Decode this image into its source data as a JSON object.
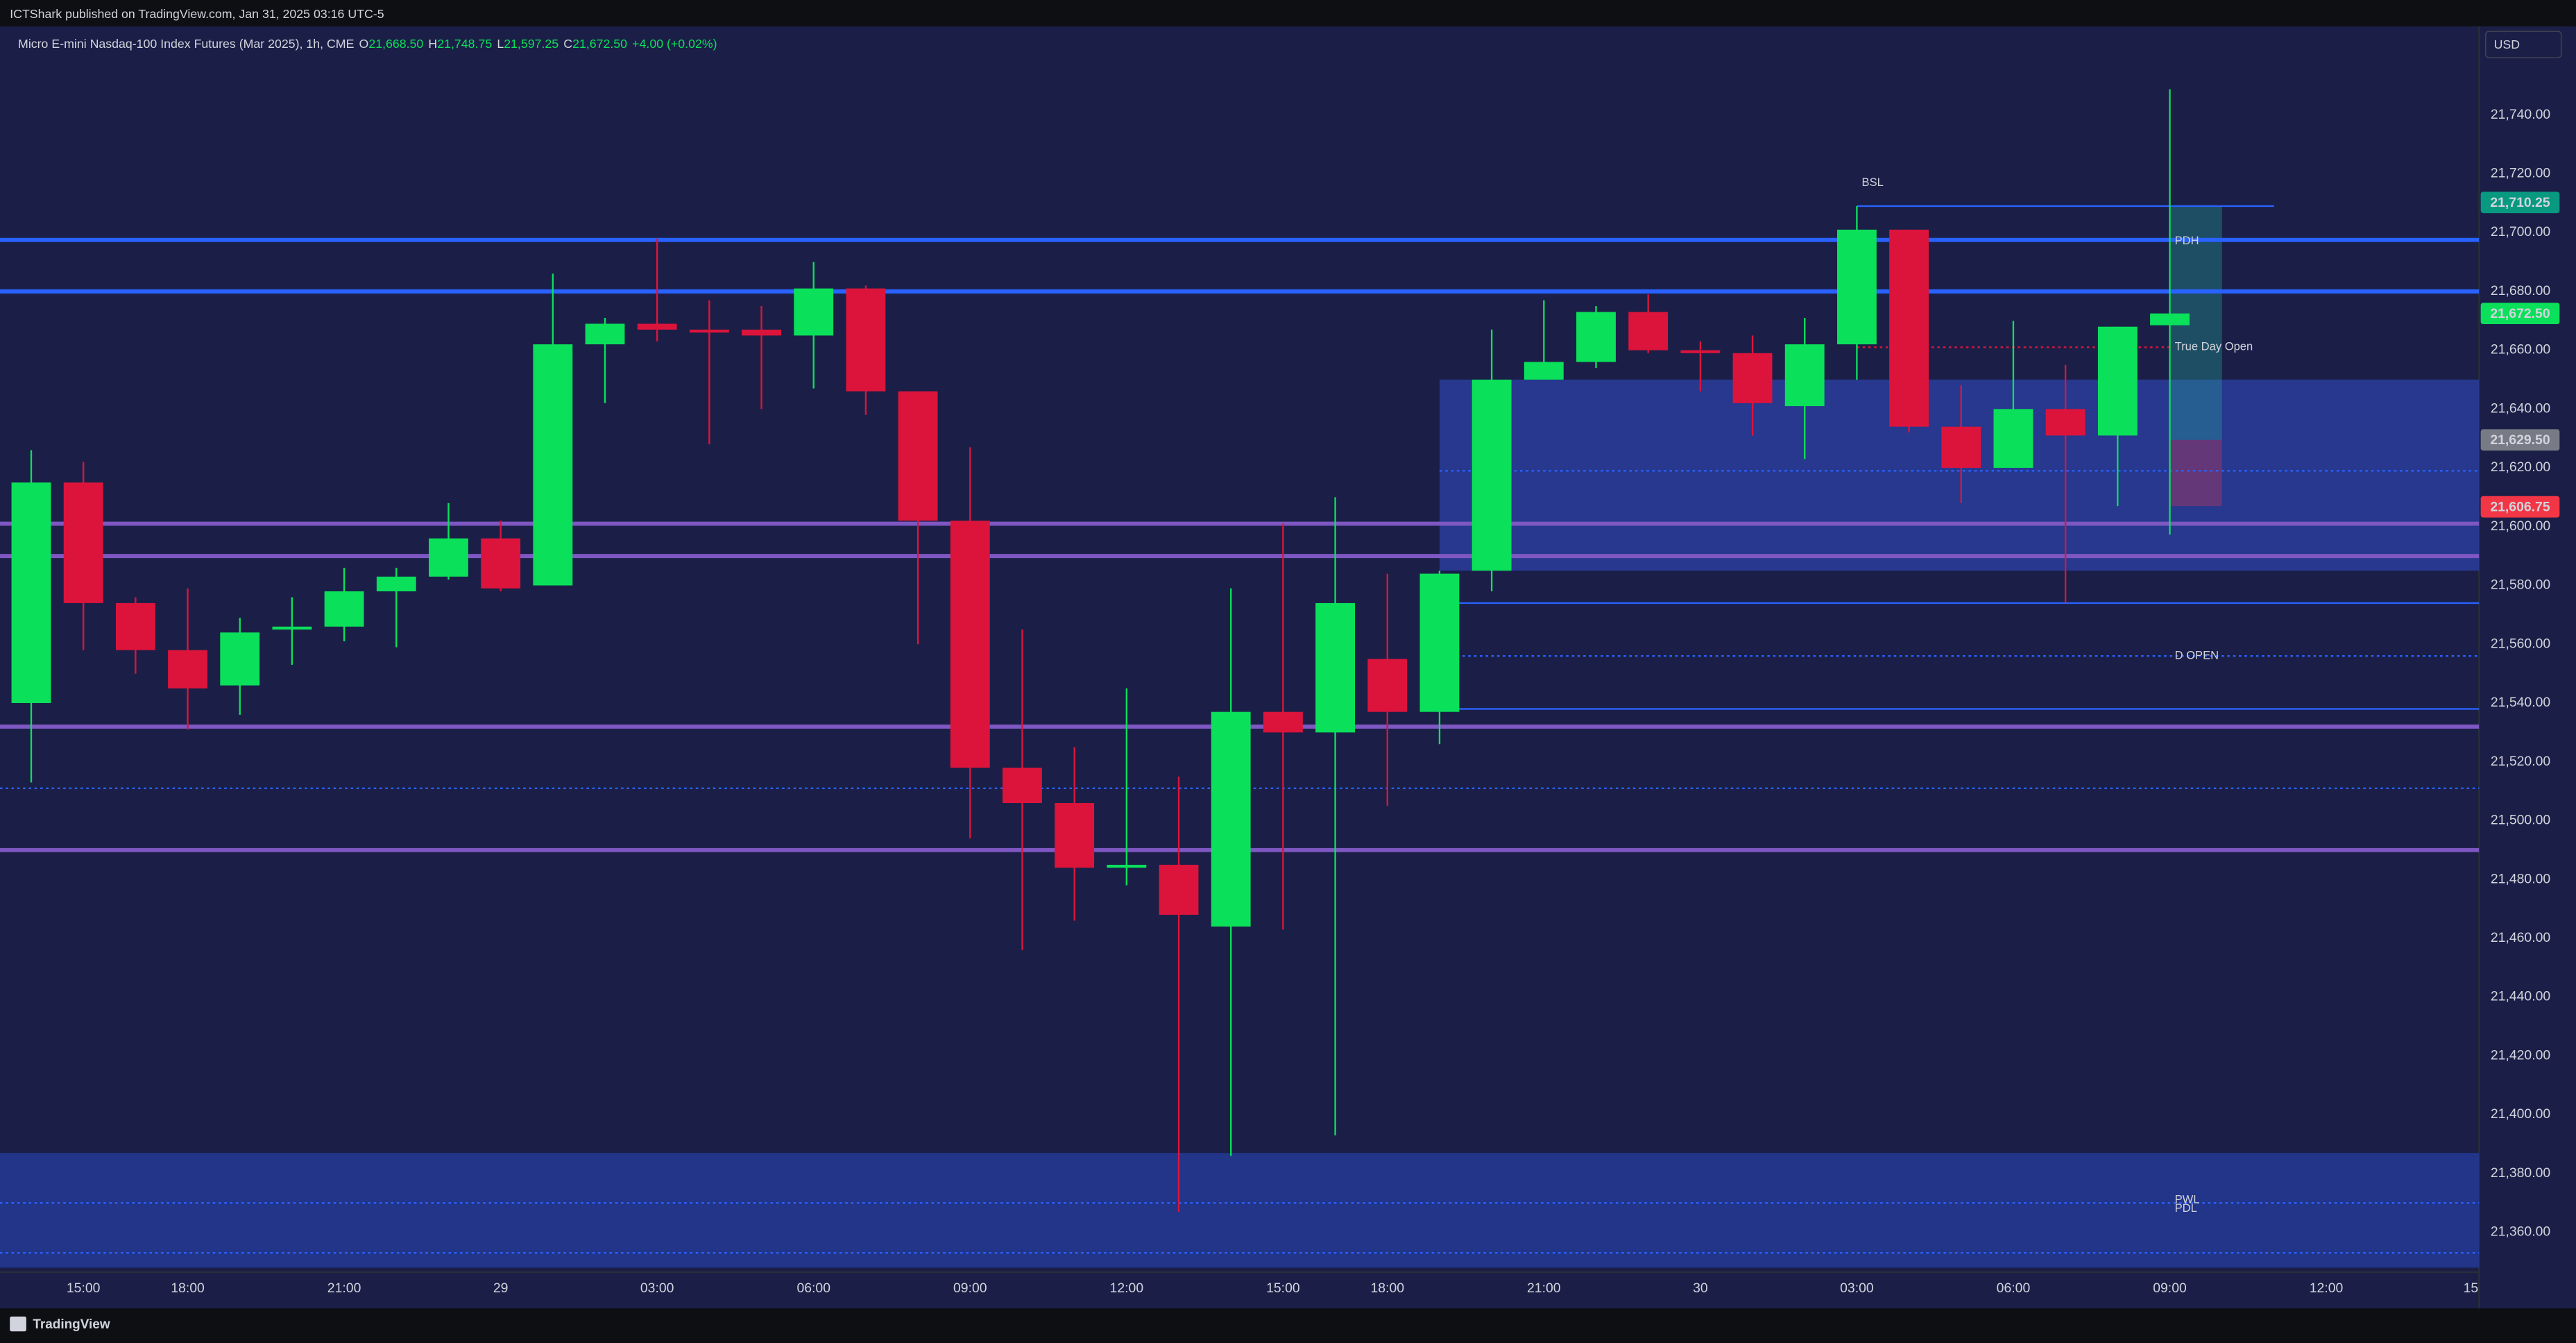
{
  "header": {
    "publisher": "ICTShark published on TradingView.com, Jan 31, 2025 03:16 UTC-5",
    "symbol": "Micro E-mini Nasdaq-100 Index Futures (Mar 2025), 1h, CME",
    "ohlc": [
      {
        "key": "O",
        "value": "21,668.50"
      },
      {
        "key": "H",
        "value": "21,748.75"
      },
      {
        "key": "L",
        "value": "21,597.25"
      },
      {
        "key": "C",
        "value": "21,672.50"
      }
    ],
    "change": "+4.00 (+0.02%)"
  },
  "footer": {
    "brand": "TradingView"
  },
  "chart_data": {
    "type": "candlestick",
    "currency": "USD",
    "grid": false,
    "up_color": "#0be05a",
    "down_color": "#dc143c",
    "categories": [
      null,
      "15:00",
      null,
      "18:00",
      null,
      null,
      "21:00",
      null,
      null,
      "29",
      null,
      null,
      "03:00",
      null,
      null,
      "06:00",
      null,
      null,
      "09:00",
      null,
      null,
      "12:00",
      null,
      null,
      "15:00",
      null,
      "18:00",
      null,
      null,
      "21:00",
      null,
      null,
      "30",
      null,
      null,
      "03:00",
      null,
      null,
      "06:00",
      null,
      null,
      "09:00",
      null,
      null,
      "12:00",
      null,
      null,
      "15"
    ],
    "open": [
      21540,
      21615,
      21574,
      21558,
      21546,
      21565,
      21566,
      21578,
      21583,
      21596,
      21580,
      21662,
      21669,
      21667,
      21667,
      21665,
      21681,
      21646,
      21602,
      21518,
      21506,
      21484,
      21485,
      21464,
      21537,
      21530,
      21555,
      21537,
      21585,
      21650,
      21656,
      21673,
      21660,
      21659,
      21641,
      21662,
      21701,
      21634,
      21620,
      21640,
      21631,
      21668.5,
      null,
      null,
      null,
      null,
      null,
      null
    ],
    "high": [
      21626,
      21622,
      21576,
      21579,
      21569,
      21576,
      21586,
      21586,
      21608,
      21602,
      21686,
      21671,
      21698,
      21677,
      21675,
      21690,
      21682,
      21646,
      21627,
      21565,
      21525,
      21545,
      21515,
      21579,
      21601,
      21610,
      21584,
      21585,
      21667,
      21677,
      21675,
      21679,
      21663,
      21665,
      21671,
      21709,
      21701,
      21648,
      21670,
      21655,
      21668,
      21748.75,
      null,
      null,
      null,
      null,
      null,
      null
    ],
    "low": [
      21513,
      21558,
      21550,
      21531,
      21536,
      21553,
      21561,
      21559,
      21582,
      21578,
      21580,
      21642,
      21663,
      21628,
      21640,
      21647,
      21638,
      21560,
      21494,
      21456,
      21466,
      21478,
      21367,
      21386,
      21463,
      21393,
      21505,
      21526,
      21578,
      21650,
      21654,
      21659,
      21646,
      21631,
      21623,
      21650,
      21632,
      21608,
      21620,
      21574,
      21607,
      21597.25,
      null,
      null,
      null,
      null,
      null,
      null
    ],
    "close": [
      21615,
      21574,
      21558,
      21545,
      21564,
      21566,
      21578,
      21583,
      21596,
      21579,
      21662,
      21669,
      21667,
      21666,
      21665,
      21681,
      21646,
      21602,
      21518,
      21506,
      21484,
      21485,
      21468,
      21537,
      21530,
      21574,
      21537,
      21584,
      21650,
      21656,
      21673,
      21660,
      21659,
      21642,
      21662,
      21701,
      21634,
      21620,
      21640,
      21631,
      21668,
      21672.5,
      null,
      null,
      null,
      null,
      null,
      null
    ],
    "ylim": [
      21347,
      21769
    ],
    "yticks": [
      {
        "value": 21360,
        "label": "21,360.00"
      },
      {
        "value": 21380,
        "label": "21,380.00"
      },
      {
        "value": 21400,
        "label": "21,400.00"
      },
      {
        "value": 21420,
        "label": "21,420.00"
      },
      {
        "value": 21440,
        "label": "21,440.00"
      },
      {
        "value": 21460,
        "label": "21,460.00"
      },
      {
        "value": 21480,
        "label": "21,480.00"
      },
      {
        "value": 21500,
        "label": "21,500.00"
      },
      {
        "value": 21520,
        "label": "21,520.00"
      },
      {
        "value": 21540,
        "label": "21,540.00"
      },
      {
        "value": 21560,
        "label": "21,560.00"
      },
      {
        "value": 21580,
        "label": "21,580.00"
      },
      {
        "value": 21600,
        "label": "21,600.00"
      },
      {
        "value": 21620,
        "label": "21,620.00"
      },
      {
        "value": 21640,
        "label": "21,640.00"
      },
      {
        "value": 21660,
        "label": "21,660.00"
      },
      {
        "value": 21680,
        "label": "21,680.00"
      },
      {
        "value": 21700,
        "label": "21,700.00"
      },
      {
        "value": 21720,
        "label": "21,720.00"
      },
      {
        "value": 21740,
        "label": "21,740.00"
      }
    ],
    "zones": [
      {
        "from_value": 21387,
        "to_value": 21348,
        "color": "#253a95",
        "opacity": 0.85
      },
      {
        "from_value": 21650,
        "to_value": 21585,
        "color": "#2a3fa0",
        "opacity": 0.8,
        "from": 27
      },
      {
        "from_value": 21709,
        "to_value": 21629.5,
        "color": "#26a69a",
        "opacity": 0.35,
        "from": 41,
        "to": 42
      },
      {
        "from_value": 21629.5,
        "to_value": 21607,
        "color": "#f23645",
        "opacity": 0.3,
        "from": 41,
        "to": 42
      }
    ],
    "levels": [
      {
        "value": 21697.5,
        "color": "#2962ff",
        "width": 2.5
      },
      {
        "value": 21680,
        "color": "#2962ff",
        "width": 2.5
      },
      {
        "value": 21601,
        "color": "#7e57c2",
        "width": 2.5
      },
      {
        "value": 21590,
        "color": "#7e57c2",
        "width": 2.5
      },
      {
        "value": 21532,
        "color": "#7e57c2",
        "width": 2.5
      },
      {
        "value": 21490,
        "color": "#7e57c2",
        "width": 2.5
      },
      {
        "value": 21574,
        "color": "#2962ff",
        "width": 1,
        "from": 27
      },
      {
        "value": 21538,
        "color": "#2962ff",
        "width": 1,
        "from": 27
      },
      {
        "value": 21709,
        "color": "#2962ff",
        "width": 1,
        "from": 35,
        "to": 43
      },
      {
        "value": 21619,
        "color": "#2962ff",
        "width": 1,
        "dash": true,
        "from": 27
      },
      {
        "value": 21556,
        "color": "#2962ff",
        "width": 1,
        "dash": true,
        "from": 27
      },
      {
        "value": 21511,
        "color": "#2962ff",
        "width": 1,
        "dash": true
      },
      {
        "value": 21370,
        "color": "#2962ff",
        "width": 1,
        "dash": true
      },
      {
        "value": 21353,
        "color": "#2962ff",
        "width": 1,
        "dash": true
      },
      {
        "value": 21661,
        "color": "#dc143c",
        "width": 1,
        "dash": true,
        "from": 35,
        "to": 41
      }
    ],
    "annotations": [
      {
        "text": "BSL",
        "value": 21713,
        "at": 35
      },
      {
        "text": "PDH",
        "value": 21697,
        "at": 41
      },
      {
        "text": "True Day Open",
        "value": 21661,
        "at": 41
      },
      {
        "text": "D OPEN",
        "value": 21556,
        "at": 41
      },
      {
        "text": "PWL",
        "value": 21371,
        "at": 41
      },
      {
        "text": "PDL",
        "value": 21368,
        "at": 41
      }
    ],
    "price_labels": [
      {
        "value": 21710.25,
        "label": "21,710.25",
        "color": "#089981",
        "text_color": "#ffffff"
      },
      {
        "value": 21672.5,
        "label": "21,672.50",
        "color": "#0be05a",
        "text_color": "#0e0f13"
      },
      {
        "value": 21629.5,
        "label": "21,629.50",
        "color": "#787b86",
        "text_color": "#ffffff"
      },
      {
        "value": 21606.75,
        "label": "21,606.75",
        "color": "#f23645",
        "text_color": "#ffffff"
      }
    ]
  }
}
